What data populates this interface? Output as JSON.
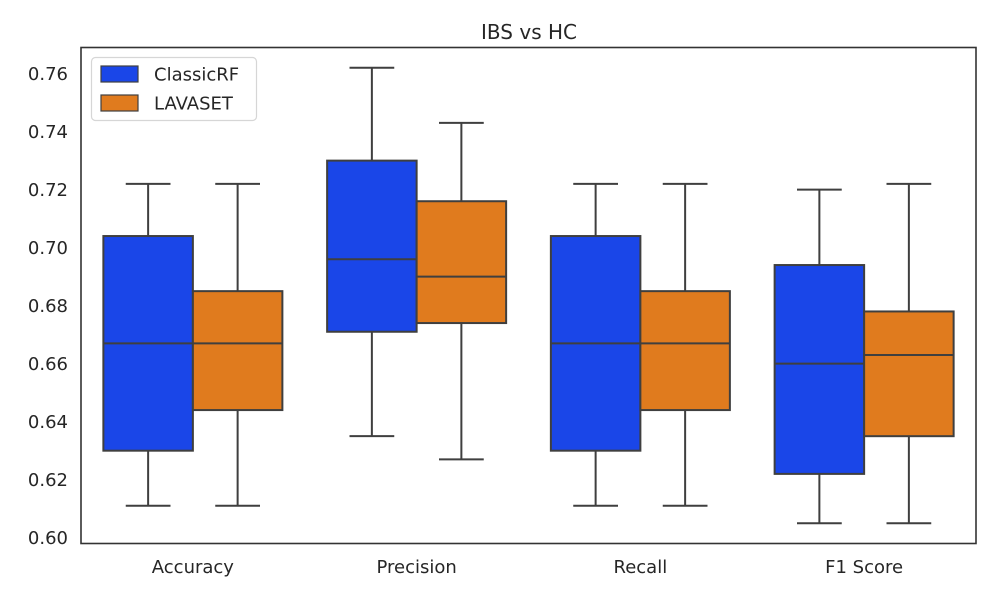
{
  "chart_data": {
    "type": "box",
    "title": "IBS vs HC",
    "xlabel": "",
    "ylabel": "",
    "ylim": [
      0.598,
      0.769
    ],
    "yticks": [
      "0.60",
      "0.62",
      "0.64",
      "0.66",
      "0.68",
      "0.70",
      "0.72",
      "0.74",
      "0.76"
    ],
    "categories": [
      "Accuracy",
      "Precision",
      "Recall",
      "F1 Score"
    ],
    "grid": false,
    "legend_position": "top-left",
    "series": [
      {
        "name": "ClassicRF",
        "color": "#1a46e8",
        "boxes": [
          {
            "whisker_low": 0.611,
            "q1": 0.63,
            "median": 0.667,
            "q3": 0.704,
            "whisker_high": 0.722
          },
          {
            "whisker_low": 0.635,
            "q1": 0.671,
            "median": 0.696,
            "q3": 0.73,
            "whisker_high": 0.762
          },
          {
            "whisker_low": 0.611,
            "q1": 0.63,
            "median": 0.667,
            "q3": 0.704,
            "whisker_high": 0.722
          },
          {
            "whisker_low": 0.605,
            "q1": 0.622,
            "median": 0.66,
            "q3": 0.694,
            "whisker_high": 0.72
          }
        ]
      },
      {
        "name": "LAVASET",
        "color": "#e07b1e",
        "boxes": [
          {
            "whisker_low": 0.611,
            "q1": 0.644,
            "median": 0.667,
            "q3": 0.685,
            "whisker_high": 0.722
          },
          {
            "whisker_low": 0.627,
            "q1": 0.674,
            "median": 0.69,
            "q3": 0.716,
            "whisker_high": 0.743
          },
          {
            "whisker_low": 0.611,
            "q1": 0.644,
            "median": 0.667,
            "q3": 0.685,
            "whisker_high": 0.722
          },
          {
            "whisker_low": 0.605,
            "q1": 0.635,
            "median": 0.663,
            "q3": 0.678,
            "whisker_high": 0.722
          }
        ]
      }
    ]
  }
}
